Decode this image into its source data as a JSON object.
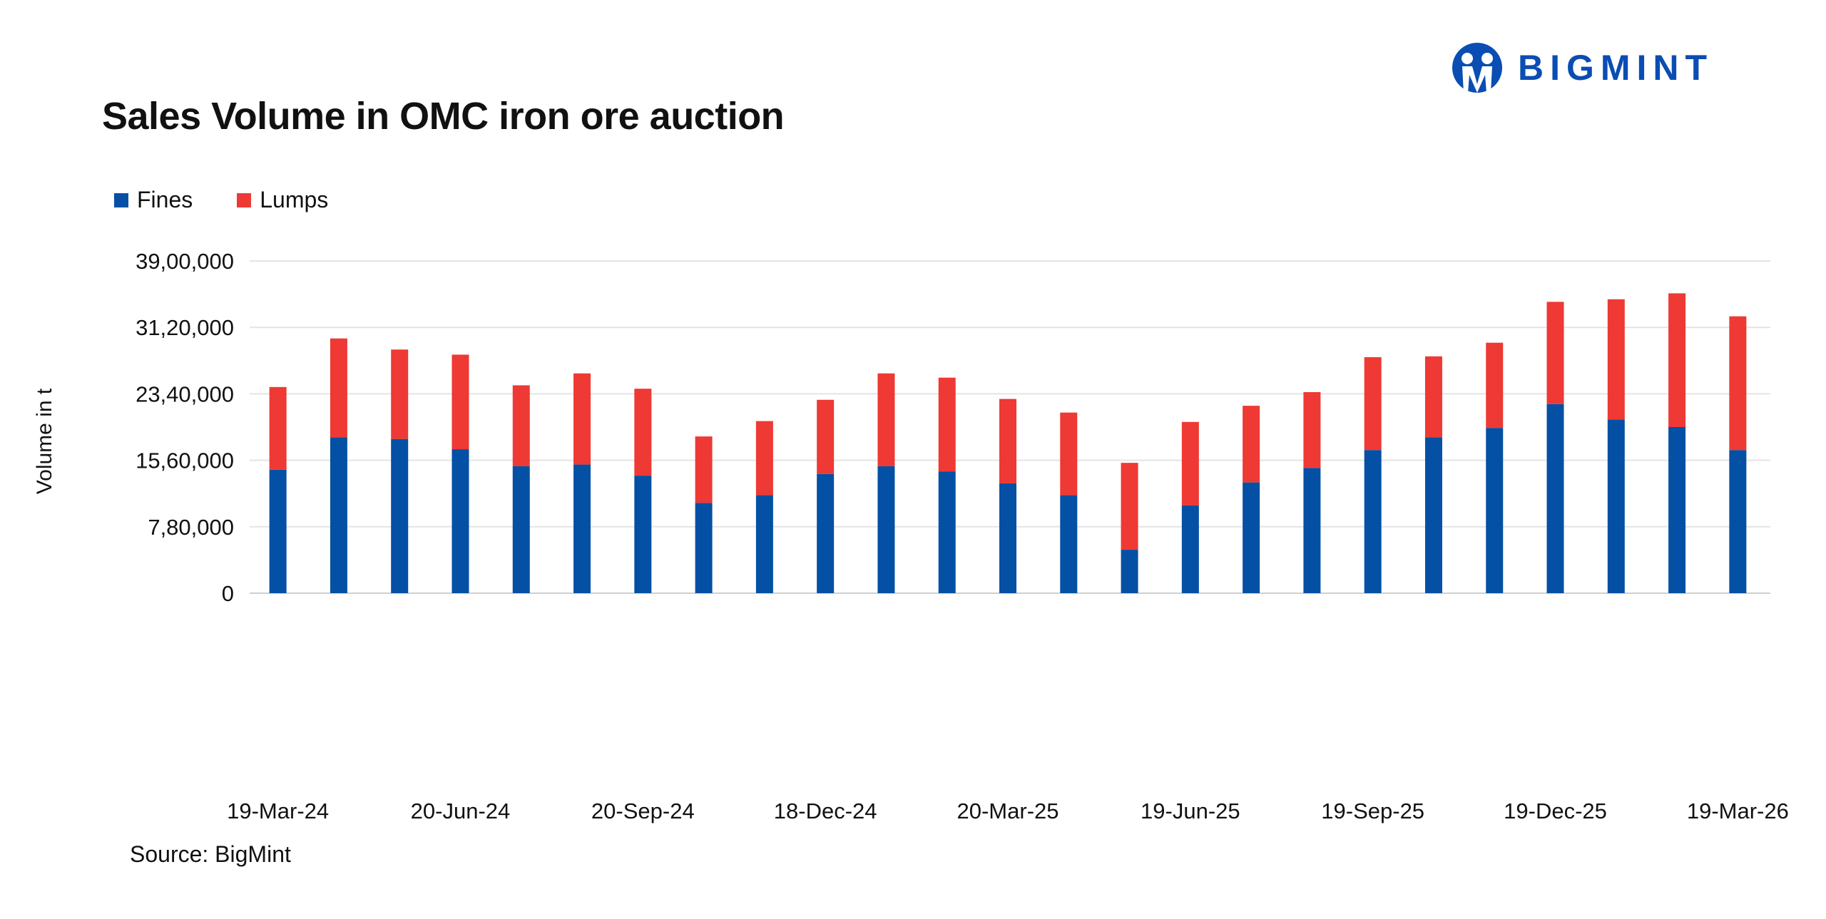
{
  "brand": {
    "name": "BIGMINT",
    "color": "#0a4db3"
  },
  "source": "Source: BigMint",
  "chart_data": {
    "type": "bar",
    "stacked": true,
    "title": "Sales Volume in OMC iron ore auction",
    "xlabel": "",
    "ylabel": "Volume in t",
    "ylim": [
      0,
      3900000
    ],
    "yticks": [
      0,
      780000,
      1560000,
      2340000,
      3120000,
      3900000
    ],
    "ytick_labels": [
      "0",
      "7,80,000",
      "15,60,000",
      "23,40,000",
      "31,20,000",
      "39,00,000"
    ],
    "grid": true,
    "legend": "top-left",
    "categories": [
      "19-Mar-24",
      "",
      "",
      "20-Jun-24",
      "",
      "",
      "20-Sep-24",
      "",
      "",
      "18-Dec-24",
      "",
      "",
      "20-Mar-25",
      "",
      "",
      "19-Jun-25",
      "",
      "",
      "19-Sep-25",
      "",
      "",
      "19-Dec-25",
      "",
      "",
      "19-Mar-26"
    ],
    "series": [
      {
        "name": "Fines",
        "color": "#0450a4",
        "values": [
          1450000,
          1830000,
          1810000,
          1690000,
          1490000,
          1510000,
          1380000,
          1060000,
          1150000,
          1400000,
          1490000,
          1430000,
          1290000,
          1150000,
          510000,
          1030000,
          1300000,
          1470000,
          1680000,
          1830000,
          1940000,
          2220000,
          2040000,
          1950000,
          1680000
        ]
      },
      {
        "name": "Lumps",
        "color": "#ee3934",
        "values": [
          970000,
          1160000,
          1050000,
          1110000,
          950000,
          1070000,
          1020000,
          780000,
          870000,
          870000,
          1090000,
          1100000,
          990000,
          970000,
          1020000,
          980000,
          900000,
          890000,
          1090000,
          950000,
          1000000,
          1200000,
          1410000,
          1570000,
          1570000
        ]
      }
    ]
  }
}
